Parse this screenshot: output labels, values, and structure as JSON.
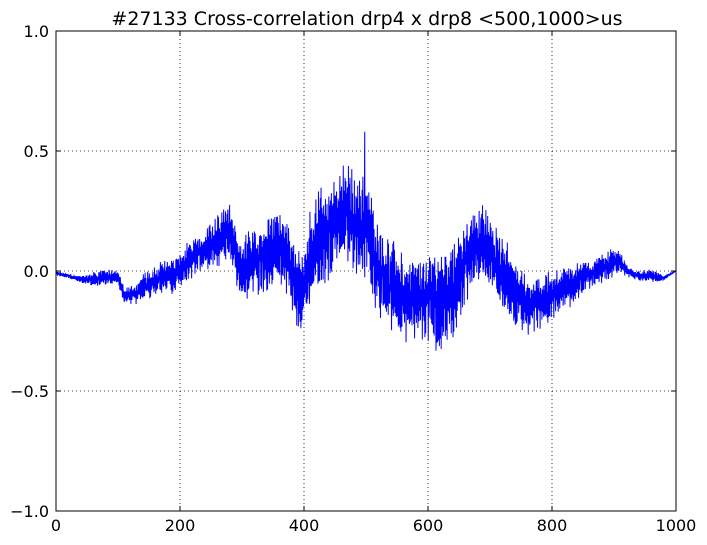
{
  "chart_data": {
    "type": "line",
    "title": "#27133 Cross-correlation drp4 x drp8 <500,1000>us",
    "xlabel": "",
    "ylabel": "",
    "xlim": [
      0,
      1000
    ],
    "ylim": [
      -1.0,
      1.0
    ],
    "grid": true,
    "x_ticks": [
      0,
      200,
      400,
      600,
      800,
      1000
    ],
    "x_tick_labels": [
      "0",
      "200",
      "400",
      "600",
      "800",
      "1000"
    ],
    "y_ticks": [
      -1.0,
      -0.5,
      0.0,
      0.5,
      1.0
    ],
    "y_tick_labels": [
      "−1.0",
      "−0.5",
      "0.0",
      "0.5",
      "1.0"
    ],
    "series": [
      {
        "color": "#0000ff",
        "envelope": {
          "x": [
            0,
            20,
            40,
            60,
            80,
            100,
            110,
            130,
            150,
            170,
            190,
            210,
            230,
            250,
            270,
            280,
            290,
            300,
            310,
            320,
            340,
            360,
            370,
            380,
            390,
            400,
            410,
            420,
            440,
            460,
            470,
            480,
            490,
            500,
            510,
            520,
            540,
            560,
            580,
            600,
            610,
            620,
            640,
            660,
            680,
            690,
            700,
            720,
            740,
            760,
            780,
            800,
            820,
            840,
            860,
            880,
            900,
            910,
            920,
            940,
            960,
            980,
            1000
          ],
          "upper": [
            0.0,
            -0.01,
            -0.02,
            0.0,
            0.01,
            0.0,
            -0.06,
            -0.05,
            0.02,
            0.05,
            0.06,
            0.12,
            0.16,
            0.2,
            0.28,
            0.3,
            0.18,
            0.12,
            0.18,
            0.22,
            0.22,
            0.28,
            0.25,
            0.15,
            0.08,
            0.15,
            0.28,
            0.34,
            0.4,
            0.44,
            0.46,
            0.42,
            0.4,
            0.46,
            0.3,
            0.22,
            0.14,
            0.08,
            0.06,
            0.08,
            0.1,
            0.12,
            0.15,
            0.24,
            0.28,
            0.3,
            0.22,
            0.15,
            0.08,
            -0.03,
            -0.0,
            0.02,
            0.04,
            0.04,
            0.05,
            0.07,
            0.1,
            0.08,
            0.03,
            0.0,
            0.01,
            -0.02,
            0.0
          ],
          "lower": [
            -0.02,
            -0.03,
            -0.05,
            -0.07,
            -0.06,
            -0.06,
            -0.14,
            -0.14,
            -0.12,
            -0.1,
            -0.1,
            -0.05,
            -0.01,
            -0.01,
            0.02,
            0.04,
            -0.06,
            -0.12,
            -0.12,
            -0.1,
            -0.1,
            -0.06,
            -0.08,
            -0.18,
            -0.26,
            -0.28,
            -0.2,
            -0.12,
            -0.05,
            -0.0,
            0.02,
            -0.0,
            -0.05,
            -0.02,
            -0.12,
            -0.2,
            -0.28,
            -0.31,
            -0.3,
            -0.3,
            -0.34,
            -0.37,
            -0.3,
            -0.16,
            -0.06,
            -0.04,
            -0.08,
            -0.16,
            -0.24,
            -0.28,
            -0.25,
            -0.22,
            -0.18,
            -0.12,
            -0.08,
            -0.06,
            -0.02,
            -0.01,
            -0.03,
            -0.04,
            -0.05,
            -0.04,
            0.0
          ]
        },
        "peak": {
          "x": 498,
          "y": 0.58
        }
      }
    ]
  }
}
